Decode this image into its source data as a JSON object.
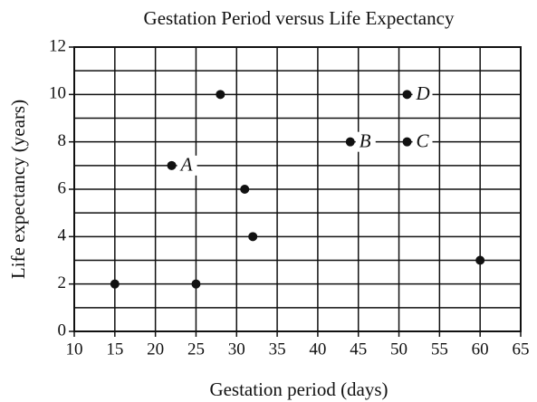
{
  "chart_data": {
    "type": "scatter",
    "title": "Gestation Period versus Life Expectancy",
    "xlabel": "Gestation period (days)",
    "ylabel": "Life expectancy (years)",
    "x": [
      15,
      22,
      25,
      28,
      31,
      32,
      44,
      51,
      51,
      60
    ],
    "values": [
      2,
      7,
      2,
      10,
      6,
      4,
      8,
      8,
      10,
      3
    ],
    "point_labels": [
      null,
      "A",
      null,
      null,
      null,
      null,
      "B",
      "C",
      "D",
      null
    ],
    "color": "#111111",
    "xlim": [
      10,
      65
    ],
    "xticks": [
      10,
      15,
      20,
      25,
      30,
      35,
      40,
      45,
      50,
      55,
      60,
      65
    ],
    "ylim": [
      0,
      12
    ],
    "yticks": [
      0,
      2,
      4,
      6,
      8,
      10,
      12
    ],
    "yminorticks": [
      1,
      3,
      5,
      7,
      9,
      11
    ],
    "grid": true
  }
}
